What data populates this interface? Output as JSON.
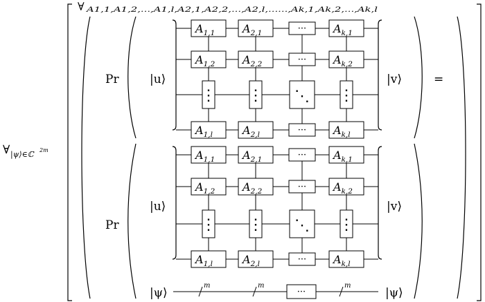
{
  "quantifier_outer": {
    "symbol": "∀",
    "subscript": "|ψ⟩∈ℂ",
    "superscript": "2m"
  },
  "quantifier_inner": {
    "symbol": "∀",
    "subscript": "A1,1,A1,2,...,A1,l,A2,1,A2,2,...,A2,l,......,Ak,1,Ak,2,...,Ak,l"
  },
  "probability_label": "Pr",
  "equals_sign": "=",
  "ket_u": "|u⟩",
  "ket_v": "|v⟩",
  "ket_psi": "|ψ⟩",
  "circuit": {
    "column_letters": [
      "A",
      "A",
      "",
      "A"
    ],
    "column_indices": [
      "1",
      "2",
      "",
      "k"
    ],
    "row_indices": [
      "1",
      "2",
      "",
      "l"
    ],
    "ellipsis_h": "···",
    "ellipsis_v": "⋮",
    "ellipsis_d": "⋱"
  },
  "register_slash_label": "m"
}
